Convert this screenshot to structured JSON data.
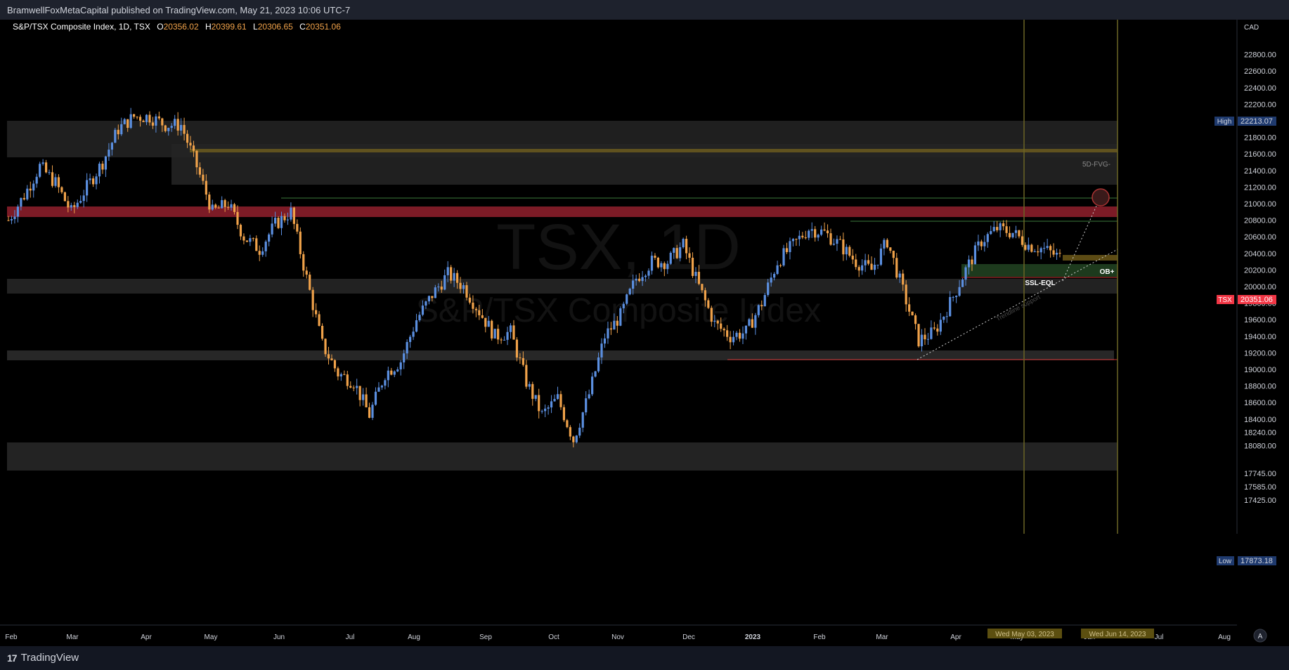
{
  "header": {
    "published": "BramwellFoxMetaCapital published on TradingView.com, May 21, 2023 10:06 UTC-7"
  },
  "legend": {
    "symbol": "S&P/TSX Composite Index, 1D, TSX",
    "o_label": "O",
    "o": "20356.02",
    "h_label": "H",
    "h": "20399.61",
    "l_label": "L",
    "l": "20306.65",
    "c_label": "C",
    "c": "20351.06"
  },
  "footer": {
    "brand": "TradingView",
    "logo_mark": "17"
  },
  "colors": {
    "up": "#5b8fe0",
    "down": "#f0a24a",
    "bg": "#000000",
    "accent_red": "#f23645",
    "high_low_tag": "#1f3a6e"
  },
  "chart_data": {
    "type": "candlestick",
    "currency": "CAD",
    "y_ticks": [
      22800,
      22600,
      22400,
      22200,
      22000,
      21800,
      21600,
      21400,
      21200,
      21000,
      20800,
      20600,
      20400,
      20200,
      20000,
      19800,
      19600,
      19400,
      19200,
      19000,
      18800,
      18600,
      18400,
      18240,
      18080,
      17745,
      17585,
      17425
    ],
    "x_ticks": [
      "Feb",
      "Mar",
      "Apr",
      "May",
      "Jun",
      "Jul",
      "Aug",
      "Sep",
      "Oct",
      "Nov",
      "Dec",
      "2023",
      "Feb",
      "Mar",
      "Apr",
      "May",
      "Jun",
      "Jul",
      "Aug"
    ],
    "price_tags": {
      "high": {
        "label": "High",
        "value": "22213.07"
      },
      "last": {
        "label": "TSX",
        "value": "20351.06"
      },
      "low": {
        "label": "Low",
        "value": "17873.18"
      }
    },
    "date_tags": [
      "Wed May 03, 2023",
      "Wed Jun 14, 2023"
    ],
    "annotations": [
      "5D-FVG-",
      "OB+",
      "SSL-EQL",
      "Trendline support"
    ],
    "watermark": {
      "line1": "TSX, 1D",
      "line2": "S&P/TSX Composite Index"
    },
    "close_path": [
      {
        "x": "Jan 31",
        "y": 20800
      },
      {
        "x": "Feb 7",
        "y": 21100
      },
      {
        "x": "Feb 14",
        "y": 21450
      },
      {
        "x": "Feb 22",
        "y": 21250
      },
      {
        "x": "Mar 1",
        "y": 20900
      },
      {
        "x": "Mar 8",
        "y": 21200
      },
      {
        "x": "Mar 15",
        "y": 21500
      },
      {
        "x": "Mar 22",
        "y": 21900
      },
      {
        "x": "Mar 29",
        "y": 22050
      },
      {
        "x": "Apr 5",
        "y": 22050
      },
      {
        "x": "Apr 12",
        "y": 21950
      },
      {
        "x": "Apr 20",
        "y": 21950
      },
      {
        "x": "Apr 26",
        "y": 21450
      },
      {
        "x": "May 3",
        "y": 20900
      },
      {
        "x": "May 10",
        "y": 21000
      },
      {
        "x": "May 17",
        "y": 20600
      },
      {
        "x": "May 24",
        "y": 20450
      },
      {
        "x": "May 31",
        "y": 20750
      },
      {
        "x": "Jun 8",
        "y": 20900
      },
      {
        "x": "Jun 15",
        "y": 20100
      },
      {
        "x": "Jun 22",
        "y": 19300
      },
      {
        "x": "Jun 29",
        "y": 18950
      },
      {
        "x": "Jul 6",
        "y": 18850
      },
      {
        "x": "Jul 13",
        "y": 18450
      },
      {
        "x": "Jul 20",
        "y": 18950
      },
      {
        "x": "Jul 27",
        "y": 19100
      },
      {
        "x": "Aug 3",
        "y": 19600
      },
      {
        "x": "Aug 10",
        "y": 19900
      },
      {
        "x": "Aug 17",
        "y": 20150
      },
      {
        "x": "Aug 24",
        "y": 20000
      },
      {
        "x": "Aug 31",
        "y": 19700
      },
      {
        "x": "Sep 8",
        "y": 19400
      },
      {
        "x": "Sep 15",
        "y": 19450
      },
      {
        "x": "Sep 22",
        "y": 18850
      },
      {
        "x": "Sep 29",
        "y": 18450
      },
      {
        "x": "Oct 6",
        "y": 18650
      },
      {
        "x": "Oct 13",
        "y": 18150
      },
      {
        "x": "Oct 20",
        "y": 18700
      },
      {
        "x": "Oct 27",
        "y": 19400
      },
      {
        "x": "Nov 3",
        "y": 19650
      },
      {
        "x": "Nov 10",
        "y": 20100
      },
      {
        "x": "Nov 17",
        "y": 20300
      },
      {
        "x": "Nov 24",
        "y": 20300
      },
      {
        "x": "Dec 1",
        "y": 20500
      },
      {
        "x": "Dec 8",
        "y": 20000
      },
      {
        "x": "Dec 15",
        "y": 19550
      },
      {
        "x": "Dec 22",
        "y": 19400
      },
      {
        "x": "Dec 30",
        "y": 19450
      },
      {
        "x": "Jan 6",
        "y": 19800
      },
      {
        "x": "Jan 13",
        "y": 20300
      },
      {
        "x": "Jan 20",
        "y": 20500
      },
      {
        "x": "Jan 27",
        "y": 20700
      },
      {
        "x": "Feb 3",
        "y": 20650
      },
      {
        "x": "Feb 10",
        "y": 20500
      },
      {
        "x": "Feb 17",
        "y": 20300
      },
      {
        "x": "Feb 24",
        "y": 20200
      },
      {
        "x": "Mar 3",
        "y": 20550
      },
      {
        "x": "Mar 10",
        "y": 19950
      },
      {
        "x": "Mar 17",
        "y": 19350
      },
      {
        "x": "Mar 24",
        "y": 19450
      },
      {
        "x": "Mar 31",
        "y": 19800
      },
      {
        "x": "Apr 7",
        "y": 20200
      },
      {
        "x": "Apr 14",
        "y": 20550
      },
      {
        "x": "Apr 21",
        "y": 20700
      },
      {
        "x": "Apr 28",
        "y": 20650
      },
      {
        "x": "May 5",
        "y": 20500
      },
      {
        "x": "May 12",
        "y": 20450
      },
      {
        "x": "May 19",
        "y": 20351
      }
    ]
  }
}
